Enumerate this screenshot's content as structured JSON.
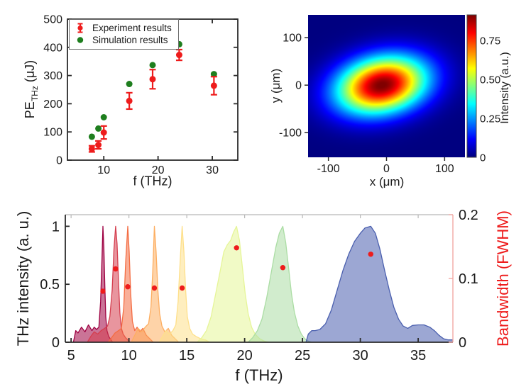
{
  "figure": {
    "background": "#ffffff",
    "text_color": "#1a1a1a",
    "accent_red": "#ee1c1c"
  },
  "chart_data": [
    {
      "id": "pulse-energy-vs-frequency",
      "type": "scatter",
      "xlabel": "f (THz)",
      "ylabel": "PE_THz (μJ)",
      "ylabel_parts": {
        "main": "PE",
        "sub": "THz",
        "rest": " (μJ)"
      },
      "xlim": [
        3.3,
        34.7
      ],
      "ylim": [
        0,
        500
      ],
      "xticks": [
        10,
        20,
        30
      ],
      "yticks": [
        0,
        100,
        200,
        300,
        400,
        500
      ],
      "grid": false,
      "legend_position": "top-left",
      "series": [
        {
          "name": "Experiment results",
          "marker": "errorbar-circle",
          "color": "#ee1c1c",
          "x": [
            7.8,
            9.0,
            10.0,
            14.7,
            19.0,
            23.9,
            30.3
          ],
          "y": [
            40,
            54,
            98,
            210,
            287,
            373,
            264
          ],
          "yerr": [
            11,
            14,
            23,
            29,
            34,
            19,
            32
          ]
        },
        {
          "name": "Simulation results",
          "marker": "circle",
          "color": "#1e7e1e",
          "x": [
            7.8,
            9.0,
            10.0,
            14.7,
            19.0,
            23.9,
            30.3
          ],
          "y": [
            83,
            112,
            152,
            270,
            337,
            411,
            305
          ]
        }
      ]
    },
    {
      "id": "beam-profile",
      "type": "heatmap",
      "xlabel": "x (μm)",
      "ylabel": "y (μm)",
      "xlim": [
        -135,
        135
      ],
      "ylim": [
        -152,
        148
      ],
      "xticks": [
        -100,
        0,
        100
      ],
      "yticks": [
        -100,
        0,
        100
      ],
      "colormap": "jet",
      "colorbar": {
        "label": "Intensity (a.u.)",
        "ticks": [
          0,
          0.25,
          0.5,
          0.75
        ],
        "tick_labels": [
          "0",
          "0.25",
          "0.50",
          "0.75"
        ],
        "vmax": 0.915
      },
      "gaussian_beam": {
        "center_x_um": -8,
        "center_y_um": 0,
        "sigma_major_um": 55,
        "sigma_minor_um": 40,
        "tilt_deg": 20,
        "peak_intensity": 0.92
      }
    },
    {
      "id": "thz-spectra-and-bandwidth",
      "type": "area",
      "xlabel": "f (THz)",
      "ylabel_left": "THz intensity (a. u.)",
      "ylabel_right": "Bandwidth (FWHM)",
      "xlim": [
        4.5,
        38
      ],
      "ylim_left": [
        0,
        1.1
      ],
      "ylim_right": [
        0,
        0.2
      ],
      "xticks": [
        5,
        10,
        15,
        20,
        25,
        30,
        35
      ],
      "yticks_left": [
        0,
        0.5,
        1
      ],
      "yticks_left_labels": [
        "0",
        "0.5",
        "1"
      ],
      "yticks_right": [
        0,
        0.1,
        0.2
      ],
      "yticks_right_labels": [
        "0",
        "0.1",
        "0.2"
      ],
      "fill_opacity": 0.55,
      "spectra": [
        {
          "center_thz": 7.75,
          "color": "#9e0142",
          "points": [
            [
              5.2,
              0
            ],
            [
              5.4,
              0.1
            ],
            [
              5.6,
              0.08
            ],
            [
              5.9,
              0.13
            ],
            [
              6.2,
              0.09
            ],
            [
              6.5,
              0.15
            ],
            [
              6.8,
              0.1
            ],
            [
              7.0,
              0.13
            ],
            [
              7.2,
              0.11
            ],
            [
              7.4,
              0.13
            ],
            [
              7.55,
              0.35
            ],
            [
              7.68,
              0.75
            ],
            [
              7.75,
              1.0
            ],
            [
              7.83,
              0.82
            ],
            [
              7.92,
              0.48
            ],
            [
              8.0,
              0.22
            ],
            [
              8.1,
              0.1
            ],
            [
              8.25,
              0.05
            ],
            [
              8.45,
              0.02
            ],
            [
              8.6,
              0
            ]
          ]
        },
        {
          "center_thz": 8.85,
          "color": "#d53e4f",
          "points": [
            [
              6.4,
              0
            ],
            [
              6.7,
              0.05
            ],
            [
              7.0,
              0.09
            ],
            [
              7.3,
              0.07
            ],
            [
              7.6,
              0.1
            ],
            [
              7.9,
              0.12
            ],
            [
              8.15,
              0.14
            ],
            [
              8.35,
              0.22
            ],
            [
              8.55,
              0.45
            ],
            [
              8.7,
              0.8
            ],
            [
              8.85,
              1.0
            ],
            [
              8.97,
              0.85
            ],
            [
              9.1,
              0.52
            ],
            [
              9.22,
              0.25
            ],
            [
              9.35,
              0.12
            ],
            [
              9.5,
              0.07
            ],
            [
              9.7,
              0.04
            ],
            [
              9.9,
              0.02
            ],
            [
              10.1,
              0
            ]
          ]
        },
        {
          "center_thz": 9.9,
          "color": "#f46d43",
          "points": [
            [
              8.2,
              0
            ],
            [
              8.5,
              0.04
            ],
            [
              8.8,
              0.08
            ],
            [
              9.1,
              0.1
            ],
            [
              9.35,
              0.12
            ],
            [
              9.55,
              0.3
            ],
            [
              9.72,
              0.7
            ],
            [
              9.9,
              1.0
            ],
            [
              10.02,
              0.78
            ],
            [
              10.15,
              0.42
            ],
            [
              10.3,
              0.18
            ],
            [
              10.5,
              0.1
            ],
            [
              10.7,
              0.13
            ],
            [
              10.95,
              0.09
            ],
            [
              11.2,
              0.12
            ],
            [
              11.5,
              0.06
            ],
            [
              11.8,
              0.03
            ],
            [
              12.1,
              0
            ]
          ]
        },
        {
          "center_thz": 12.2,
          "color": "#fdae61",
          "points": [
            [
              10.2,
              0
            ],
            [
              10.5,
              0.06
            ],
            [
              10.8,
              0.12
            ],
            [
              11.1,
              0.09
            ],
            [
              11.4,
              0.13
            ],
            [
              11.7,
              0.16
            ],
            [
              11.9,
              0.3
            ],
            [
              12.05,
              0.6
            ],
            [
              12.2,
              1.0
            ],
            [
              12.35,
              0.78
            ],
            [
              12.5,
              0.45
            ],
            [
              12.65,
              0.25
            ],
            [
              12.85,
              0.14
            ],
            [
              13.1,
              0.09
            ],
            [
              13.4,
              0.12
            ],
            [
              13.7,
              0.06
            ],
            [
              14.0,
              0.03
            ],
            [
              14.3,
              0
            ]
          ]
        },
        {
          "center_thz": 14.6,
          "color": "#fee08b",
          "points": [
            [
              12.6,
              0
            ],
            [
              12.9,
              0.05
            ],
            [
              13.2,
              0.1
            ],
            [
              13.5,
              0.07
            ],
            [
              13.8,
              0.1
            ],
            [
              14.05,
              0.15
            ],
            [
              14.25,
              0.35
            ],
            [
              14.45,
              0.75
            ],
            [
              14.6,
              1.0
            ],
            [
              14.75,
              0.78
            ],
            [
              14.9,
              0.45
            ],
            [
              15.05,
              0.22
            ],
            [
              15.25,
              0.12
            ],
            [
              15.5,
              0.07
            ],
            [
              15.8,
              0.05
            ],
            [
              16.2,
              0.03
            ],
            [
              16.6,
              0.02
            ],
            [
              17.0,
              0
            ]
          ]
        },
        {
          "center_thz": 19.3,
          "color": "#e6f598",
          "points": [
            [
              15.9,
              0
            ],
            [
              16.3,
              0.04
            ],
            [
              16.7,
              0.1
            ],
            [
              17.1,
              0.22
            ],
            [
              17.5,
              0.42
            ],
            [
              17.9,
              0.62
            ],
            [
              18.2,
              0.78
            ],
            [
              18.5,
              0.84
            ],
            [
              18.8,
              0.88
            ],
            [
              19.05,
              0.95
            ],
            [
              19.3,
              1.0
            ],
            [
              19.55,
              0.88
            ],
            [
              19.8,
              0.65
            ],
            [
              20.05,
              0.42
            ],
            [
              20.3,
              0.25
            ],
            [
              20.6,
              0.13
            ],
            [
              20.9,
              0.07
            ],
            [
              21.3,
              0.03
            ],
            [
              21.7,
              0.01
            ],
            [
              22.1,
              0
            ]
          ]
        },
        {
          "center_thz": 23.3,
          "color": "#abdda4",
          "points": [
            [
              20.3,
              0
            ],
            [
              20.7,
              0.04
            ],
            [
              21.1,
              0.1
            ],
            [
              21.5,
              0.2
            ],
            [
              21.9,
              0.38
            ],
            [
              22.3,
              0.6
            ],
            [
              22.7,
              0.82
            ],
            [
              23.0,
              0.94
            ],
            [
              23.3,
              1.0
            ],
            [
              23.55,
              0.86
            ],
            [
              23.8,
              0.64
            ],
            [
              24.05,
              0.42
            ],
            [
              24.3,
              0.26
            ],
            [
              24.6,
              0.14
            ],
            [
              24.9,
              0.07
            ],
            [
              25.2,
              0.03
            ],
            [
              25.5,
              0.01
            ],
            [
              25.8,
              0
            ]
          ]
        },
        {
          "center_thz": 30.9,
          "color": "#4a5fae",
          "points": [
            [
              25.3,
              0
            ],
            [
              25.5,
              0.07
            ],
            [
              25.8,
              0.1
            ],
            [
              26.1,
              0.1
            ],
            [
              26.5,
              0.11
            ],
            [
              27.0,
              0.16
            ],
            [
              27.5,
              0.28
            ],
            [
              28.0,
              0.45
            ],
            [
              28.5,
              0.62
            ],
            [
              29.0,
              0.76
            ],
            [
              29.5,
              0.87
            ],
            [
              30.0,
              0.94
            ],
            [
              30.4,
              0.985
            ],
            [
              30.9,
              1.0
            ],
            [
              31.3,
              0.94
            ],
            [
              31.7,
              0.8
            ],
            [
              32.1,
              0.62
            ],
            [
              32.5,
              0.45
            ],
            [
              32.9,
              0.3
            ],
            [
              33.3,
              0.2
            ],
            [
              33.7,
              0.14
            ],
            [
              34.1,
              0.12
            ],
            [
              34.5,
              0.145
            ],
            [
              35.0,
              0.15
            ],
            [
              35.5,
              0.15
            ],
            [
              36.0,
              0.13
            ],
            [
              36.4,
              0.1
            ],
            [
              36.8,
              0.06
            ],
            [
              37.2,
              0.03
            ],
            [
              37.6,
              0.02
            ],
            [
              38.0,
              0.02
            ]
          ]
        }
      ],
      "bandwidth_fwhm": {
        "color": "#ee1c1c",
        "x": [
          7.75,
          8.85,
          9.9,
          12.2,
          14.6,
          19.3,
          23.3,
          30.9
        ],
        "y": [
          0.08,
          0.115,
          0.087,
          0.085,
          0.085,
          0.148,
          0.117,
          0.138
        ]
      }
    }
  ]
}
